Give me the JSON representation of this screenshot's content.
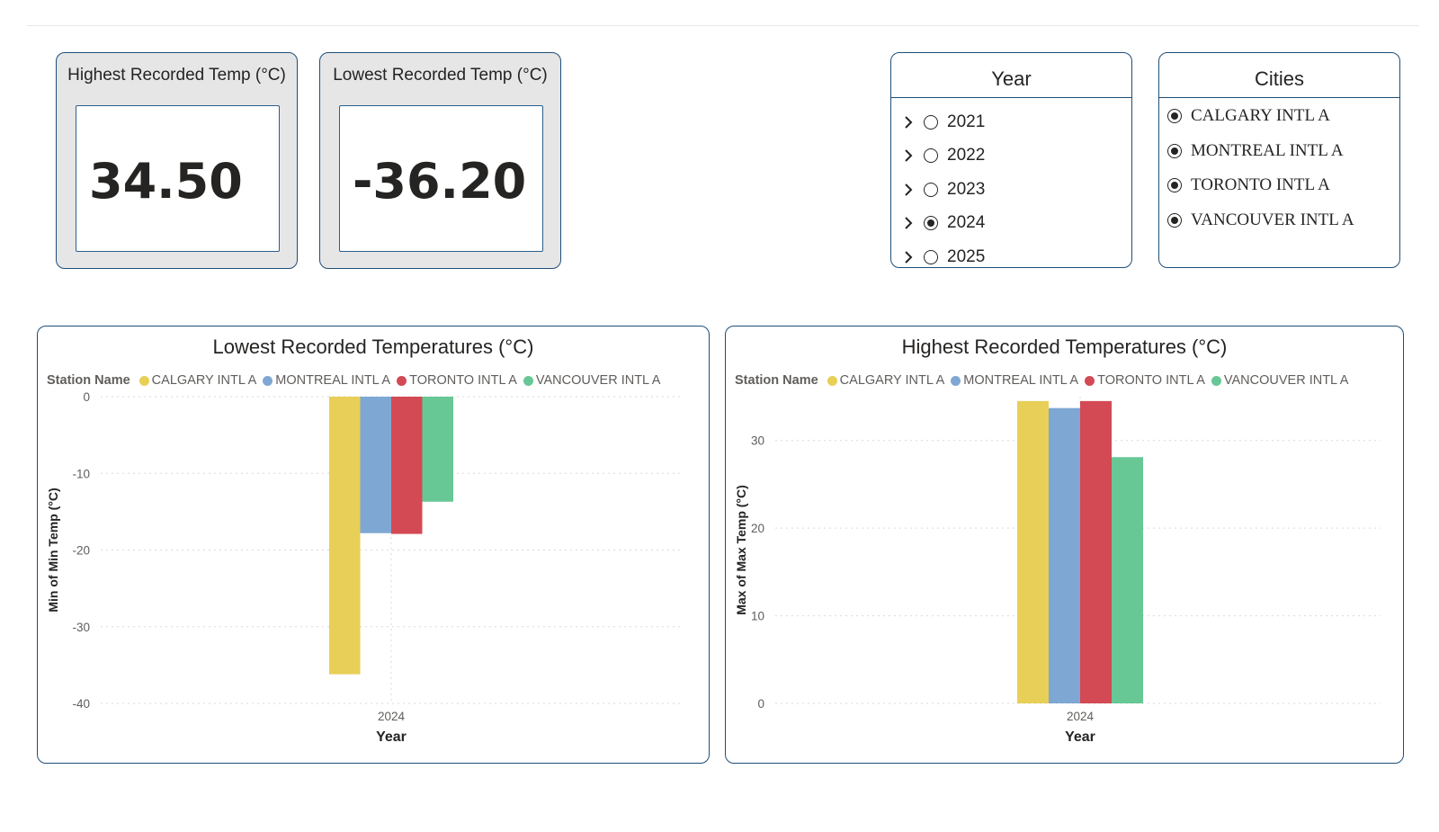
{
  "kpis": {
    "highest": {
      "title": "Highest Recorded Temp (°C)",
      "value": "34.50"
    },
    "lowest": {
      "title": "Lowest Recorded Temp (°C)",
      "value": "-36.20"
    }
  },
  "year_slicer": {
    "title": "Year",
    "items": [
      {
        "label": "2021",
        "selected": false
      },
      {
        "label": "2022",
        "selected": false
      },
      {
        "label": "2023",
        "selected": false
      },
      {
        "label": "2024",
        "selected": true
      },
      {
        "label": "2025",
        "selected": false
      }
    ]
  },
  "city_slicer": {
    "title": "Cities",
    "items": [
      {
        "label": "CALGARY INTL A",
        "selected": true
      },
      {
        "label": "MONTREAL INTL A",
        "selected": true
      },
      {
        "label": "TORONTO INTL A",
        "selected": true
      },
      {
        "label": "VANCOUVER INTL A",
        "selected": true
      }
    ]
  },
  "colors": {
    "CALGARY INTL A": "#e8cf57",
    "MONTREAL INTL A": "#7ea8d3",
    "TORONTO INTL A": "#d34954",
    "VANCOUVER INTL A": "#67c795",
    "border": "#1f4e79"
  },
  "chart_data": [
    {
      "type": "bar",
      "title": "Lowest Recorded Temperatures (°C)",
      "legend_title": "Station Name",
      "xlabel": "Year",
      "ylabel": "Min of Min Temp (°C)",
      "categories": [
        "2024"
      ],
      "ylim": [
        -40,
        0
      ],
      "yticks": [
        0,
        -10,
        -20,
        -30,
        -40
      ],
      "grid": true,
      "series": [
        {
          "name": "CALGARY INTL A",
          "values": [
            -36.2
          ]
        },
        {
          "name": "MONTREAL INTL A",
          "values": [
            -17.8
          ]
        },
        {
          "name": "TORONTO INTL A",
          "values": [
            -17.9
          ]
        },
        {
          "name": "VANCOUVER INTL A",
          "values": [
            -13.7
          ]
        }
      ]
    },
    {
      "type": "bar",
      "title": "Highest Recorded Temperatures (°C)",
      "legend_title": "Station Name",
      "xlabel": "Year",
      "ylabel": "Max of Max Temp (°C)",
      "categories": [
        "2024"
      ],
      "ylim": [
        0,
        35
      ],
      "yticks": [
        0,
        10,
        20,
        30
      ],
      "grid": true,
      "series": [
        {
          "name": "CALGARY INTL A",
          "values": [
            34.5
          ]
        },
        {
          "name": "MONTREAL INTL A",
          "values": [
            33.7
          ]
        },
        {
          "name": "TORONTO INTL A",
          "values": [
            34.5
          ]
        },
        {
          "name": "VANCOUVER INTL A",
          "values": [
            28.1
          ]
        }
      ]
    }
  ]
}
